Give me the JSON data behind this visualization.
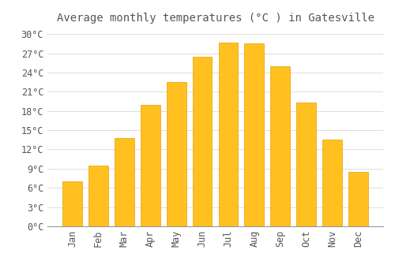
{
  "title": "Average monthly temperatures (°C ) in Gatesville",
  "months": [
    "Jan",
    "Feb",
    "Mar",
    "Apr",
    "May",
    "Jun",
    "Jul",
    "Aug",
    "Sep",
    "Oct",
    "Nov",
    "Dec"
  ],
  "values": [
    7.0,
    9.5,
    13.8,
    19.0,
    22.5,
    26.5,
    28.7,
    28.5,
    25.0,
    19.3,
    13.5,
    8.5
  ],
  "bar_color": "#FFC020",
  "bar_edge_color": "#E8A000",
  "background_color": "#FFFFFF",
  "plot_bg_color": "#FAFAFA",
  "grid_color": "#DDDDDD",
  "text_color": "#555555",
  "ylim": [
    0,
    31
  ],
  "yticks": [
    0,
    3,
    6,
    9,
    12,
    15,
    18,
    21,
    24,
    27,
    30
  ],
  "ytick_labels": [
    "0°C",
    "3°C",
    "6°C",
    "9°C",
    "12°C",
    "15°C",
    "18°C",
    "21°C",
    "24°C",
    "27°C",
    "30°C"
  ],
  "title_fontsize": 10,
  "tick_fontsize": 8.5,
  "bar_width": 0.75
}
